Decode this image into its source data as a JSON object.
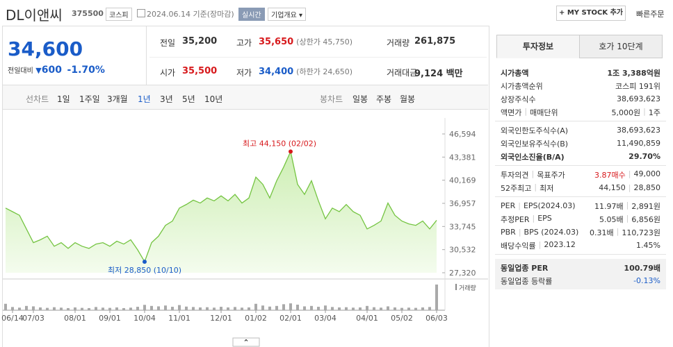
{
  "header": {
    "name": "DL이앤씨",
    "code": "375500",
    "market": "코스피",
    "date": "2024.06.14 기준(장마감)",
    "realtime": "실시간",
    "overview": "기업개요",
    "mystock": "MY STOCK 추가",
    "quick_order": "빠른주문"
  },
  "summary": {
    "price": "34,600",
    "change_label": "전일대비",
    "change": "600",
    "change_rate": "-1.70%"
  },
  "quotes": {
    "rows": [
      [
        {
          "label": "전일",
          "value": "35,200"
        },
        {
          "label": "고가",
          "value": "35,650",
          "note": "(상한가 45,750)",
          "color": "#d7191c"
        },
        {
          "label": "거래량",
          "value": "261,875"
        }
      ],
      [
        {
          "label": "시가",
          "value": "35,500",
          "color": "#d7191c"
        },
        {
          "label": "저가",
          "value": "34,400",
          "note": "(하한가 24,650)",
          "color": "#1a5cc8"
        },
        {
          "label": "거래대금",
          "value": "9,124 백만"
        }
      ]
    ]
  },
  "tabs": {
    "line_label": "선차트",
    "line_items": [
      "1일",
      "1주일",
      "3개월",
      "1년",
      "3년",
      "5년",
      "10년"
    ],
    "selected_index": 3,
    "candle_label": "봉차트",
    "candle_items": [
      "일봉",
      "주봉",
      "월봉"
    ]
  },
  "price_chart": {
    "type": "area",
    "color": "#74c441",
    "categories": [
      null,
      "06/14",
      null,
      null,
      "07/03",
      null,
      null,
      null,
      null,
      null,
      "08/01",
      null,
      null,
      null,
      null,
      "09/01",
      null,
      null,
      null,
      null,
      "10/04",
      null,
      null,
      null,
      null,
      "11/01",
      null,
      null,
      null,
      null,
      null,
      "12/01",
      null,
      null,
      null,
      null,
      "01/02",
      null,
      null,
      null,
      null,
      "02/01",
      null,
      null,
      null,
      null,
      "03/04",
      null,
      null,
      null,
      null,
      null,
      "04/01",
      null,
      null,
      null,
      null,
      "05/02",
      null,
      null,
      null,
      null,
      "06/03"
    ],
    "values": [
      36300,
      35800,
      35300,
      33400,
      31500,
      31900,
      32400,
      31000,
      31500,
      30700,
      31500,
      31000,
      30700,
      31300,
      31500,
      31000,
      31700,
      31300,
      31900,
      30500,
      28850,
      31500,
      32400,
      33900,
      34500,
      36300,
      36800,
      37400,
      37000,
      37700,
      37300,
      38000,
      37300,
      38200,
      37000,
      37700,
      40600,
      39600,
      37700,
      40100,
      42000,
      44150,
      39600,
      38200,
      40100,
      37300,
      34800,
      36300,
      35800,
      36800,
      35800,
      35300,
      33400,
      33900,
      34500,
      37000,
      35300,
      34500,
      34100,
      33900,
      34500,
      33400,
      34600
    ],
    "volume_label": "거래량",
    "volume": [
      300000,
      150000,
      120000,
      200000,
      180000,
      130000,
      110000,
      140000,
      120000,
      100000,
      130000,
      110000,
      100000,
      150000,
      120000,
      110000,
      130000,
      100000,
      120000,
      160000,
      250000,
      200000,
      180000,
      220000,
      160000,
      240000,
      170000,
      150000,
      130000,
      140000,
      120000,
      160000,
      130000,
      150000,
      120000,
      130000,
      300000,
      220000,
      170000,
      200000,
      280000,
      320000,
      260000,
      180000,
      200000,
      160000,
      220000,
      150000,
      130000,
      140000,
      120000,
      130000,
      200000,
      140000,
      120000,
      180000,
      130000,
      110000,
      120000,
      110000,
      130000,
      150000,
      1200000
    ],
    "ylim": [
      27320,
      46594
    ],
    "yticks": [
      {
        "value": 46594,
        "label": "46,594"
      },
      {
        "value": 43381,
        "label": "43,381"
      },
      {
        "value": 40169,
        "label": "40,169"
      },
      {
        "value": 36957,
        "label": "36,957"
      },
      {
        "value": 33745,
        "label": "33,745"
      },
      {
        "value": 30532,
        "label": "30,532"
      },
      {
        "value": 27320,
        "label": "27,320"
      }
    ],
    "max_label": "최고 44,150 (02/02)",
    "min_label": "최저 28,850 (10/10)"
  },
  "invest_panel": {
    "tabs": [
      "투자정보",
      "호가 10단계"
    ],
    "selected_index": 0,
    "sections": [
      {
        "rows": [
          {
            "label": [
              "시가총액"
            ],
            "values": [
              "1조 3,388억원"
            ],
            "bold": true
          },
          {
            "label": [
              "시가총액순위"
            ],
            "values": [
              "코스피 191위"
            ]
          },
          {
            "label": [
              "상장주식수"
            ],
            "values": [
              "38,693,623"
            ]
          },
          {
            "label": [
              "액면가",
              "매매단위"
            ],
            "values": [
              "5,000원",
              "1주"
            ]
          }
        ]
      },
      {
        "rows": [
          {
            "label": [
              "외국인한도주식수(A)"
            ],
            "values": [
              "38,693,623"
            ]
          },
          {
            "label": [
              "외국인보유주식수(B)"
            ],
            "values": [
              "11,490,859"
            ]
          },
          {
            "label": [
              "외국인소진율(B/A)"
            ],
            "values": [
              "29.70%"
            ],
            "bold": true
          }
        ]
      },
      {
        "rows": [
          {
            "label": [
              "투자의견",
              "목표주가"
            ],
            "values": [
              "3.87매수",
              "49,000"
            ],
            "value_colors": [
              "#d7191c",
              "#333333"
            ]
          },
          {
            "label": [
              "52주최고",
              "최저"
            ],
            "values": [
              "44,150",
              "28,850"
            ]
          }
        ]
      },
      {
        "rows": [
          {
            "label": [
              "PER",
              "EPS(2024.03)"
            ],
            "values": [
              "11.97배",
              "2,891원"
            ]
          },
          {
            "label": [
              "추정PER",
              "EPS"
            ],
            "values": [
              "5.05배",
              "6,856원"
            ]
          },
          {
            "label": [
              "PBR",
              "BPS (2024.03)"
            ],
            "values": [
              "0.31배",
              "110,723원"
            ]
          },
          {
            "label": [
              "배당수익률",
              "2023.12"
            ],
            "values": [
              "1.45%"
            ]
          }
        ]
      },
      {
        "shaded": true,
        "rows": [
          {
            "label": [
              "동일업종 PER"
            ],
            "values": [
              "100.79배"
            ],
            "bold": true
          },
          {
            "label": [
              "동일업종 등락률"
            ],
            "values": [
              "-0.13%"
            ],
            "value_colors": [
              "#1a5cc8"
            ]
          }
        ]
      }
    ]
  }
}
